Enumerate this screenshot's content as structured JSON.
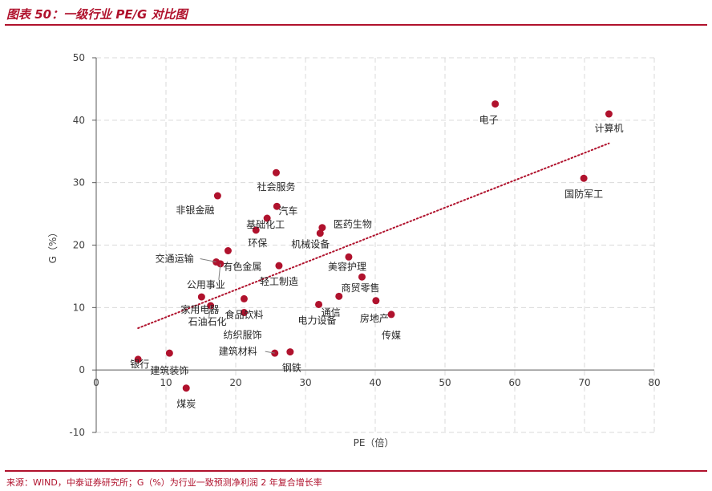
{
  "figure_title": "图表 50：一级行业 PE/G 对比图",
  "source_note": "来源：WIND，中泰证券研究所；G（%）为行业一致预测净利润 2 年复合增长率",
  "colors": {
    "brand": "#b0122d",
    "point": "#b0122d",
    "trend": "#b0122d",
    "grid": "#d9d9d9",
    "axis": "#595959"
  },
  "chart_data": {
    "type": "scatter",
    "title": "",
    "xlabel": "PE（倍）",
    "ylabel": "G（%）",
    "xlim": [
      0,
      80
    ],
    "ylim": [
      -10,
      50
    ],
    "x_ticks": [
      "0",
      "10",
      "20",
      "30",
      "40",
      "50",
      "60",
      "70",
      "80"
    ],
    "y_ticks": [
      "-10",
      "0",
      "10",
      "20",
      "30",
      "40",
      "50"
    ],
    "grid": true,
    "trendline": {
      "style": "dotted",
      "x": [
        6,
        73.5
      ],
      "y": [
        6.7,
        36.3
      ]
    },
    "points": [
      {
        "label": "电子",
        "x": 57.2,
        "y": 42.6
      },
      {
        "label": "计算机",
        "x": 73.5,
        "y": 41.0
      },
      {
        "label": "国防军工",
        "x": 69.9,
        "y": 30.7
      },
      {
        "label": "社会服务",
        "x": 25.8,
        "y": 31.6
      },
      {
        "label": "非银金融",
        "x": 17.4,
        "y": 27.9
      },
      {
        "label": "汽车",
        "x": 25.9,
        "y": 26.2
      },
      {
        "label": "基础化工",
        "x": 24.5,
        "y": 24.3
      },
      {
        "label": "环保",
        "x": 22.9,
        "y": 22.4
      },
      {
        "label": "医药生物",
        "x": 32.4,
        "y": 22.8
      },
      {
        "label": "机械设备",
        "x": 32.1,
        "y": 21.9
      },
      {
        "label": "交通运输",
        "x": 17.2,
        "y": 17.3
      },
      {
        "label": "有色金属",
        "x": 18.9,
        "y": 19.1
      },
      {
        "label": "公用事业",
        "x": 17.8,
        "y": 17.0
      },
      {
        "label": "轻工制造",
        "x": 26.2,
        "y": 16.7
      },
      {
        "label": "美容护理",
        "x": 36.2,
        "y": 18.1
      },
      {
        "label": "商贸零售",
        "x": 38.1,
        "y": 14.9
      },
      {
        "label": "家用电器",
        "x": 15.1,
        "y": 11.7
      },
      {
        "label": "石油石化",
        "x": 16.4,
        "y": 10.3
      },
      {
        "label": "食品饮料",
        "x": 21.2,
        "y": 11.4
      },
      {
        "label": "纺织服饰",
        "x": 21.2,
        "y": 9.2
      },
      {
        "label": "电力设备",
        "x": 31.9,
        "y": 10.5
      },
      {
        "label": "通信",
        "x": 34.8,
        "y": 11.8
      },
      {
        "label": "房地产",
        "x": 40.1,
        "y": 11.1
      },
      {
        "label": "传媒",
        "x": 42.3,
        "y": 8.9
      },
      {
        "label": "建筑材料",
        "x": 25.6,
        "y": 2.7
      },
      {
        "label": "钢铁",
        "x": 27.8,
        "y": 2.9
      },
      {
        "label": "银行",
        "x": 6.0,
        "y": 1.7
      },
      {
        "label": "建筑装饰",
        "x": 10.5,
        "y": 2.7
      },
      {
        "label": "煤炭",
        "x": 12.9,
        "y": -2.9
      }
    ]
  }
}
